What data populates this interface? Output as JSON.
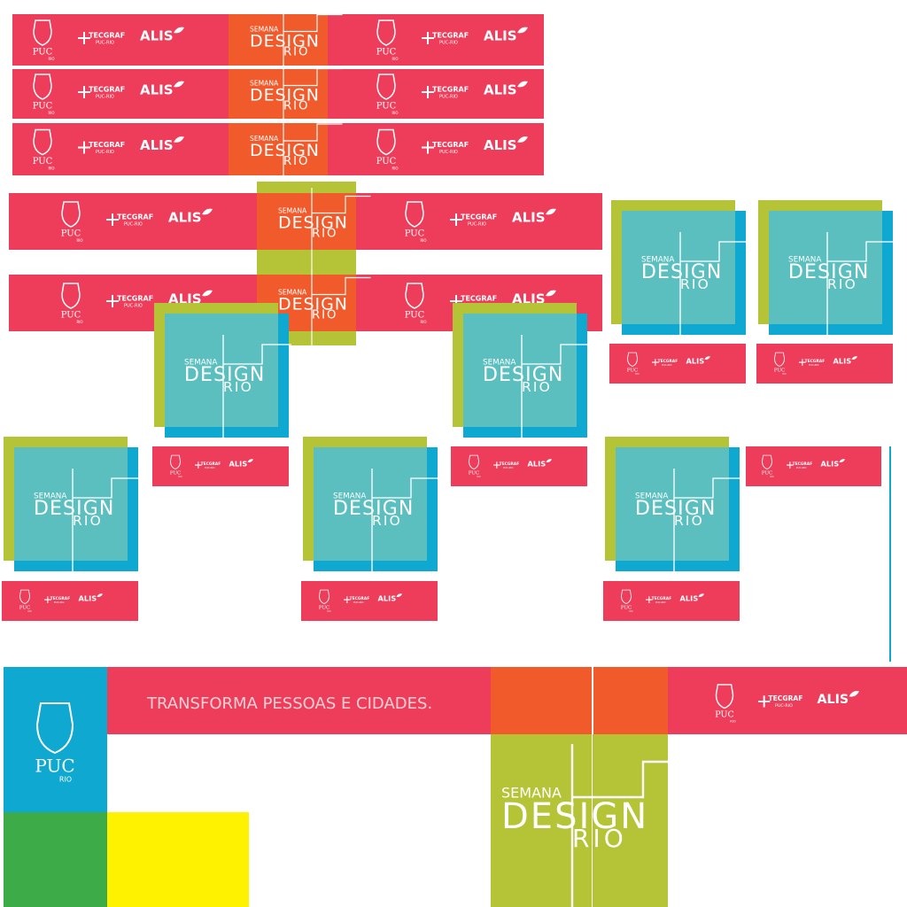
{
  "logos": {
    "puc": "PUC",
    "puc_sub": "RIO",
    "tecgraf": "TECGRAF",
    "tecgraf_sub": "PUC-RIO",
    "alis": "ALIS"
  },
  "brand": {
    "semana": "SEMANA",
    "design": "DESIGN",
    "rio": "RIO"
  },
  "tagline": "TRANSFORMA PESSOAS E CIDADES."
}
